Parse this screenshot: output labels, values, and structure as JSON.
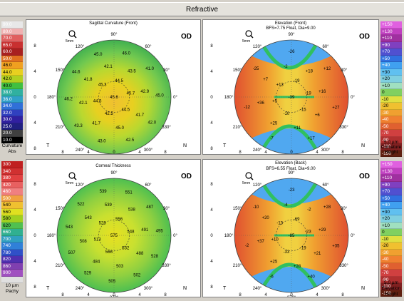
{
  "window_title": "Refractive",
  "panels": {
    "sagittal": {
      "title": "Sagittal Curvature (Front)",
      "eye": "OD",
      "zoom": "5mm",
      "values": [
        "45.6",
        "44.5",
        "45.7",
        "44.5",
        "42.5",
        "44.5",
        "45.3",
        "43.5",
        "42.9",
        "41.7",
        "45.0",
        "41.7",
        "42.1",
        "41.8",
        "42.1",
        "41.0",
        "45.0",
        "42.0",
        "42.5",
        "43.0",
        "43.3",
        "46.2",
        "44.6",
        "45.0",
        "46.0"
      ]
    },
    "elev_front": {
      "title": "Elevation (Front)",
      "subtitle": "BFS=7.75 Float, Dia=9.00",
      "eye": "OD",
      "zoom": "5mm",
      "values": [
        "-39",
        "-19",
        "-19",
        "-15",
        "-10",
        "+5",
        "+13",
        "+18",
        "+16",
        "+6",
        "+11",
        "+25",
        "+36",
        "+7",
        "-2",
        "+12",
        "+27",
        "+17",
        "-7",
        "-12",
        "-25",
        "-26"
      ]
    },
    "thickness": {
      "title": "Corneal Thickness",
      "eye": "OD",
      "zoom": "5mm",
      "values": [
        "575",
        "556",
        "548",
        "532",
        "566",
        "513",
        "528",
        "538",
        "491",
        "488",
        "503",
        "484",
        "508",
        "543",
        "539",
        "487",
        "495",
        "528",
        "502",
        "505",
        "529",
        "507",
        "543",
        "522",
        "539",
        "551"
      ]
    },
    "elev_back": {
      "title": "Elevation (Back)",
      "subtitle": "BFS=6.55 Float, Dia=9.00",
      "eye": "OD",
      "zoom": "5mm",
      "values": [
        "-85",
        "-69",
        "-23",
        "-19",
        "-33",
        "+10",
        "-13",
        "-2",
        "+29",
        "+21",
        "+28",
        "+25",
        "+37",
        "+20",
        "-4",
        "+28",
        "+35",
        "+40",
        "-6",
        "-2",
        "-10",
        "-23"
      ]
    }
  },
  "scales": {
    "curvature": {
      "unit_line1": "Curvature",
      "unit_line2": "Abs",
      "steps": [
        "90.0",
        "80.0",
        "70.0",
        "65.0",
        "60.0",
        "50.0",
        "46.0",
        "44.0",
        "42.0",
        "40.0",
        "38.0",
        "36.0",
        "34.0",
        "32.0",
        "30.0",
        "25.0",
        "20.0",
        "10.0"
      ]
    },
    "pachy": {
      "unit_line1": "10 µm",
      "unit_line2": "Pachy",
      "steps": [
        "300",
        "340",
        "380",
        "420",
        "460",
        "500",
        "540",
        "560",
        "580",
        "620",
        "660",
        "700",
        "740",
        "780",
        "820",
        "860",
        "900",
        ""
      ]
    },
    "elevation_front": {
      "unit_line1": "5.0 µm",
      "unit_line2": "Curvature",
      "unit_line3": "Height",
      "steps": [
        "+150",
        "+130",
        "+110",
        "+90",
        "+70",
        "+50",
        "+40",
        "+30",
        "+20",
        "+10",
        "0",
        "-10",
        "-20",
        "-30",
        "-40",
        "-50",
        "-70",
        "-90",
        "-110",
        "-150"
      ]
    },
    "elevation_back": {
      "unit_line1": "5.0 µm",
      "unit_line2": "Elevation",
      "unit_line3": "Height",
      "steps": [
        "+150",
        "+130",
        "+110",
        "+90",
        "+70",
        "+50",
        "+40",
        "+30",
        "+20",
        "+10",
        "0",
        "-10",
        "-20",
        "-30",
        "-40",
        "-50",
        "-70",
        "-90",
        "-110",
        "-150"
      ]
    }
  },
  "axis": {
    "x_ticks": [
      "8",
      "4",
      "0",
      "4",
      "8"
    ],
    "y_ticks": [
      "8",
      "4",
      "0",
      "4",
      "8"
    ],
    "deg_top": "90°",
    "deg_bottom": "270°",
    "deg_left": "180°",
    "deg_right": "0°",
    "deg_120": "120°",
    "deg_60": "60°",
    "deg_150": "150°",
    "deg_30": "30°",
    "deg_210": "210°",
    "deg_330": "330°",
    "deg_240": "240°",
    "deg_300": "300°",
    "t_label": "T",
    "n_label": "N"
  }
}
